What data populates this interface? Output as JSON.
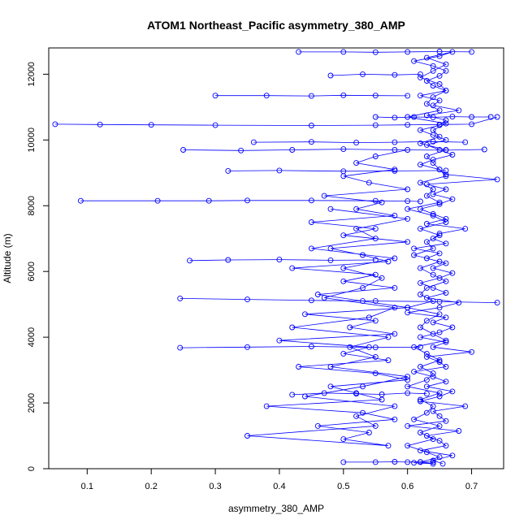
{
  "chart_data": {
    "type": "scatter",
    "title": "ATOM1 Northeast_Pacific asymmetry_380_AMP",
    "xlabel": "asymmetry_380_AMP",
    "ylabel": "Altitude (m)",
    "xlim": [
      0.04,
      0.75
    ],
    "ylim": [
      0,
      12800
    ],
    "x_ticks": [
      0.1,
      0.2,
      0.3,
      0.4,
      0.5,
      0.6,
      0.7
    ],
    "y_ticks": [
      0,
      2000,
      4000,
      6000,
      8000,
      10000,
      12000
    ],
    "grid": false,
    "legend": "none",
    "color": "#0000ff",
    "marker": "open-circle",
    "connected": true,
    "series": [
      {
        "x": [
          0.655,
          0.64,
          0.67,
          0.62,
          0.66,
          0.65,
          0.63,
          0.68,
          0.6,
          0.66,
          0.65,
          0.64,
          0.69,
          0.62,
          0.65,
          0.67,
          0.63,
          0.66,
          0.64,
          0.61,
          0.66,
          0.65,
          0.63,
          0.7,
          0.64,
          0.66,
          0.62,
          0.65,
          0.67,
          0.64,
          0.66,
          0.6,
          0.65,
          0.68,
          0.63,
          0.66,
          0.64,
          0.62,
          0.65,
          0.67,
          0.64,
          0.66,
          0.63,
          0.65,
          0.61,
          0.66,
          0.64,
          0.65,
          0.69,
          0.63,
          0.66,
          0.64,
          0.62,
          0.65,
          0.67,
          0.64,
          0.66,
          0.63,
          0.74,
          0.66,
          0.65,
          0.62,
          0.64,
          0.67,
          0.65,
          0.63,
          0.66,
          0.64,
          0.62,
          0.65,
          0.66,
          0.63,
          0.68,
          0.64,
          0.65,
          0.62,
          0.66,
          0.64,
          0.63,
          0.65,
          0.66,
          0.64,
          0.61,
          0.65,
          0.67,
          0.63,
          0.66,
          0.64,
          0.62,
          0.65,
          0.66,
          0.64,
          0.63,
          0.65,
          0.6,
          0.66,
          0.64,
          0.65,
          0.62,
          0.66,
          0.63,
          0.64,
          0.65,
          0.66,
          0.62,
          0.64,
          0.63,
          0.65,
          0.6,
          0.64,
          0.66,
          0.62,
          0.65,
          0.63,
          0.64,
          0.61,
          0.65,
          0.62,
          0.64,
          0.66,
          0.63,
          0.62,
          0.64,
          0.6,
          0.65,
          0.63,
          0.62,
          0.64,
          0.66,
          0.61,
          0.63,
          0.65,
          0.62,
          0.64,
          0.63,
          0.6,
          0.65,
          0.62,
          0.64,
          0.63,
          0.61,
          0.65,
          0.62,
          0.64,
          0.6,
          0.63,
          0.65,
          0.62,
          0.64,
          0.61
        ],
        "y": [
          150,
          250,
          400,
          550,
          700,
          850,
          1000,
          1150,
          1300,
          1450,
          1600,
          1750,
          1900,
          2050,
          2200,
          2350,
          2500,
          2650,
          2800,
          2950,
          3100,
          3250,
          3400,
          3550,
          3700,
          3850,
          4000,
          4150,
          4300,
          4450,
          4600,
          4750,
          4900,
          5050,
          5200,
          5350,
          5500,
          5650,
          5800,
          5950,
          6100,
          6250,
          6400,
          6550,
          6700,
          6850,
          7000,
          7150,
          7300,
          7450,
          7600,
          7750,
          7900,
          8050,
          8200,
          8350,
          8500,
          8650,
          8800,
          8950,
          9100,
          9250,
          9400,
          9550,
          9700,
          9850,
          10000,
          10150,
          10300,
          10450,
          10600,
          10750,
          10900,
          11050,
          11200,
          11350,
          11500,
          11650,
          11800,
          11950,
          12100,
          12250,
          12400,
          12550,
          12680,
          12500,
          12300,
          12100,
          11900,
          11700,
          11500,
          11300,
          11100,
          10900,
          10700,
          10500,
          10300,
          10100,
          9900,
          9700,
          9500,
          9300,
          9100,
          8900,
          8700,
          8500,
          8300,
          8100,
          7900,
          7700,
          7500,
          7300,
          7100,
          6900,
          6700,
          6500,
          6300,
          6100,
          5900,
          5700,
          5500,
          5300,
          5100,
          4900,
          4700,
          4500,
          4300,
          4100,
          3900,
          3700,
          3500,
          3300,
          3100,
          2900,
          2700,
          2500,
          2300,
          2100,
          1900,
          1700,
          1500,
          1300,
          1100,
          900,
          700,
          500,
          350,
          200,
          150,
          180
        ]
      },
      {
        "x": [
          0.6,
          0.55,
          0.52,
          0.58,
          0.5,
          0.54,
          0.6,
          0.47,
          0.56,
          0.52,
          0.58,
          0.45,
          0.55,
          0.5,
          0.6,
          0.48,
          0.53,
          0.57,
          0.42,
          0.55,
          0.5,
          0.58,
          0.46,
          0.53,
          0.6,
          0.44,
          0.55,
          0.51,
          0.58,
          0.4,
          0.54,
          0.5,
          0.57,
          0.43,
          0.55,
          0.6,
          0.48,
          0.52,
          0.56,
          0.38,
          0.53,
          0.58,
          0.46,
          0.54,
          0.5,
          0.57,
          0.35,
          0.55,
          0.52,
          0.58,
          0.44,
          0.53,
          0.6,
          0.48,
          0.55,
          0.51,
          0.57,
          0.42,
          0.54,
          0.58,
          0.47,
          0.53,
          0.56,
          0.5,
          0.58,
          0.45,
          0.55,
          0.52,
          0.6,
          0.48
        ],
        "y": [
          9700,
          9500,
          9300,
          9100,
          8900,
          8700,
          8500,
          8300,
          8100,
          7900,
          7700,
          7500,
          7300,
          7100,
          6900,
          6700,
          6500,
          6300,
          6100,
          5900,
          5700,
          5500,
          5300,
          5100,
          4900,
          4700,
          4500,
          4300,
          4100,
          3900,
          3700,
          3500,
          3300,
          3100,
          2900,
          2700,
          2500,
          2300,
          2100,
          1900,
          1700,
          1500,
          1300,
          1100,
          900,
          700,
          1000,
          1300,
          1600,
          1900,
          2200,
          2500,
          2800,
          3100,
          3400,
          3700,
          4000,
          4300,
          4600,
          4900,
          5200,
          5500,
          5800,
          6100,
          6400,
          6700,
          7000,
          7300,
          7600,
          7900
        ]
      },
      {
        "x": [
          0.05,
          0.12,
          0.2,
          0.3,
          0.45,
          0.55,
          0.6,
          0.65,
          0.7,
          0.74
        ],
        "y": [
          10480,
          10470,
          10460,
          10450,
          10440,
          10450,
          10460,
          10470,
          10480,
          10700
        ]
      },
      {
        "x": [
          0.09,
          0.21,
          0.29,
          0.35,
          0.45,
          0.55,
          0.6,
          0.62
        ],
        "y": [
          8150,
          8150,
          8150,
          8160,
          8160,
          8150,
          8140,
          8130
        ]
      },
      {
        "x": [
          0.25,
          0.34,
          0.42,
          0.5,
          0.58,
          0.66,
          0.72
        ],
        "y": [
          9700,
          9680,
          9700,
          9720,
          9700,
          9690,
          9710
        ]
      },
      {
        "x": [
          0.3,
          0.38,
          0.45,
          0.5,
          0.55,
          0.6
        ],
        "y": [
          11350,
          11350,
          11340,
          11360,
          11350,
          11345
        ]
      },
      {
        "x": [
          0.43,
          0.5,
          0.55,
          0.6,
          0.65,
          0.7
        ],
        "y": [
          12680,
          12680,
          12670,
          12680,
          12690,
          12680
        ]
      },
      {
        "x": [
          0.245,
          0.35,
          0.45,
          0.55,
          0.65,
          0.74
        ],
        "y": [
          5180,
          5150,
          5120,
          5100,
          5080,
          5050
        ]
      },
      {
        "x": [
          0.245,
          0.35,
          0.45,
          0.55,
          0.62
        ],
        "y": [
          3680,
          3700,
          3720,
          3690,
          3700
        ]
      },
      {
        "x": [
          0.26,
          0.32,
          0.4,
          0.48,
          0.55
        ],
        "y": [
          6330,
          6350,
          6360,
          6340,
          6350
        ]
      },
      {
        "x": [
          0.5,
          0.55,
          0.58,
          0.6,
          0.62,
          0.64
        ],
        "y": [
          200,
          200,
          210,
          200,
          205,
          200
        ]
      },
      {
        "x": [
          0.55,
          0.58,
          0.61,
          0.64,
          0.67,
          0.7,
          0.73
        ],
        "y": [
          10700,
          10680,
          10700,
          10690,
          10710,
          10700,
          10700
        ]
      },
      {
        "x": [
          0.32,
          0.4,
          0.5,
          0.58,
          0.66
        ],
        "y": [
          9060,
          9070,
          9050,
          9060,
          9070
        ]
      },
      {
        "x": [
          0.36,
          0.45,
          0.52,
          0.58,
          0.64,
          0.69
        ],
        "y": [
          9930,
          9940,
          9920,
          9930,
          9950,
          9930
        ]
      },
      {
        "x": [
          0.48,
          0.53,
          0.58,
          0.62
        ],
        "y": [
          11960,
          12000,
          11980,
          12000
        ]
      },
      {
        "x": [
          0.42,
          0.47,
          0.52,
          0.56,
          0.6,
          0.63
        ],
        "y": [
          2250,
          2300,
          2280,
          2260,
          2300,
          2280
        ]
      }
    ]
  }
}
